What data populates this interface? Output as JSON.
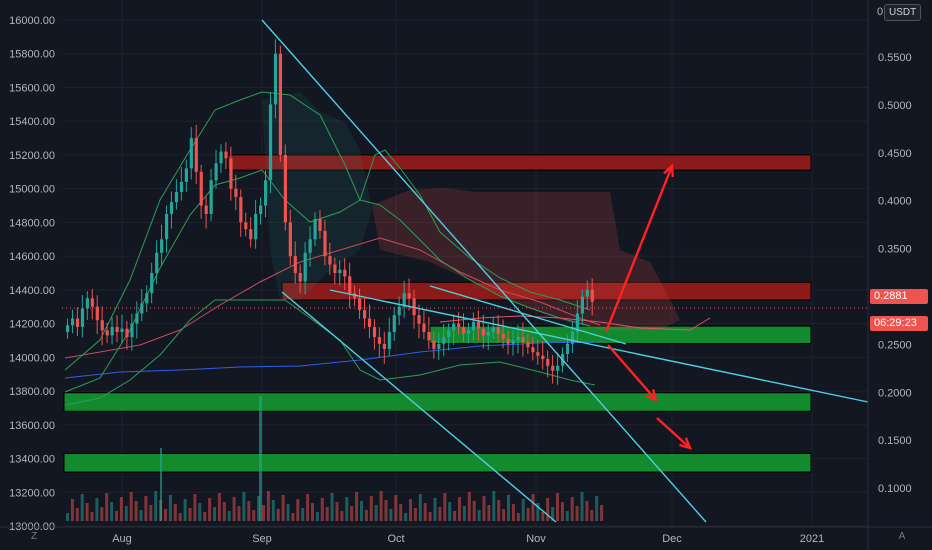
{
  "colors": {
    "background": "#131722",
    "grid": "#1e222d",
    "up": "#26a69a",
    "down": "#ef5350",
    "trendline": "#4dd0e1",
    "red_zone": "#8b1a1a",
    "green_zone": "#138a2e",
    "arrow": "#ff2222",
    "ema": "#2f5ee8",
    "bb": "#2e9c57"
  },
  "axes": {
    "unit": "USDT",
    "left_ticks": [
      "16000.00",
      "15800.00",
      "15600.00",
      "15400.00",
      "15200.00",
      "15000.00",
      "14800.00",
      "14600.00",
      "14400.00",
      "14200.00",
      "14000.00",
      "13800.00",
      "13600.00",
      "13400.00",
      "13200.00",
      "13000.00"
    ],
    "right_ticks": [
      "0.5500",
      "0.5000",
      "0.4500",
      "0.4000",
      "0.3500",
      "0.3000",
      "0.2500",
      "0.2000",
      "0.1500",
      "0.1000"
    ],
    "right_top_label": "0",
    "time_ticks": [
      "Aug",
      "Sep",
      "Oct",
      "Nov",
      "Dec",
      "2021"
    ]
  },
  "price_label": {
    "last": "0.2881",
    "countdown": "06:29:23"
  },
  "corner": {
    "left": "Z",
    "right": "A"
  },
  "chart_data": {
    "type": "candlestick",
    "left_axis_range": [
      12990,
      16020
    ],
    "right_axis_range": [
      0.085,
      0.585
    ],
    "log_scale": false,
    "grid": true,
    "zones": [
      {
        "kind": "resistance",
        "color": "red",
        "from": 15110,
        "to": 15200
      },
      {
        "kind": "resistance",
        "color": "red",
        "from": 14340,
        "to": 14445
      },
      {
        "kind": "support",
        "color": "green",
        "from": 14082,
        "to": 14185
      },
      {
        "kind": "support",
        "color": "green",
        "from": 13680,
        "to": 13790
      },
      {
        "kind": "support",
        "color": "green",
        "from": 13320,
        "to": 13430
      }
    ],
    "last_price": 0.2881,
    "annotations": [
      "arrow-up-target",
      "arrow-down-target-1",
      "arrow-down-target-2"
    ]
  }
}
